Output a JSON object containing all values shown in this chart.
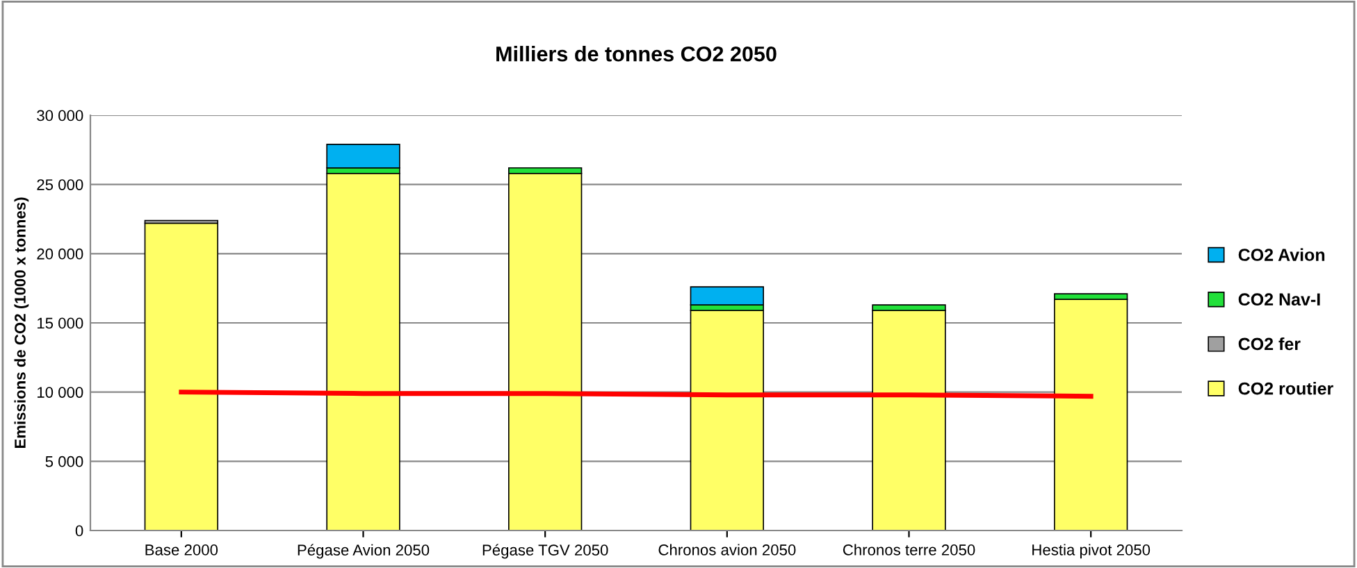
{
  "chart_data": {
    "type": "bar",
    "title": "Milliers de tonnes CO2 2050",
    "ylabel": "Emissions de CO2 (1000 x tonnes)",
    "categories": [
      "Base 2000",
      "Pégase Avion 2050",
      "Pégase TGV 2050",
      "Chronos avion 2050",
      "Chronos terre 2050",
      "Hestia pivot 2050"
    ],
    "stacked": true,
    "series": [
      {
        "name": "CO2 routier",
        "color": "#ffff66",
        "values": [
          22200,
          25800,
          25800,
          15900,
          15900,
          16700
        ]
      },
      {
        "name": "CO2 fer",
        "color": "#a0a0a0",
        "values": [
          200,
          null,
          null,
          null,
          null,
          null
        ]
      },
      {
        "name": "CO2 Nav-I",
        "color": "#22e03a",
        "values": [
          null,
          400,
          400,
          400,
          400,
          400
        ]
      },
      {
        "name": "CO2 Avion",
        "color": "#00b0f0",
        "values": [
          null,
          1700,
          null,
          1300,
          null,
          null
        ]
      },
      {
        "type": "line",
        "color": "#ff0000",
        "values": [
          10000,
          9900,
          9900,
          9800,
          9800,
          9700
        ]
      }
    ],
    "ylim": [
      0,
      30000
    ],
    "yticks": [
      {
        "value": 0,
        "label": "0"
      },
      {
        "value": 5000,
        "label": "5 000"
      },
      {
        "value": 10000,
        "label": "10 000"
      },
      {
        "value": 15000,
        "label": "15 000"
      },
      {
        "value": 20000,
        "label": "20 000"
      },
      {
        "value": 25000,
        "label": "25 000"
      },
      {
        "value": 30000,
        "label": "30 000"
      }
    ],
    "grid": "y",
    "legend": "right",
    "marker": "none"
  }
}
